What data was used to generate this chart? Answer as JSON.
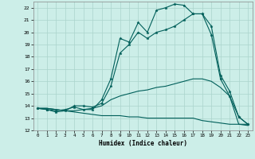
{
  "xlabel": "Humidex (Indice chaleur)",
  "bg_color": "#cceee8",
  "grid_color": "#aad4cc",
  "line_color": "#005f5a",
  "xlim": [
    -0.5,
    23.5
  ],
  "ylim": [
    12,
    22.5
  ],
  "xticks": [
    0,
    1,
    2,
    3,
    4,
    5,
    6,
    7,
    8,
    9,
    10,
    11,
    12,
    13,
    14,
    15,
    16,
    17,
    18,
    19,
    20,
    21,
    22,
    23
  ],
  "yticks": [
    12,
    13,
    14,
    15,
    16,
    17,
    18,
    19,
    20,
    21,
    22
  ],
  "line1_y": [
    13.8,
    13.7,
    13.6,
    13.7,
    13.9,
    13.7,
    13.7,
    14.5,
    16.2,
    19.5,
    19.2,
    20.8,
    20.0,
    21.8,
    22.0,
    22.3,
    22.2,
    21.5,
    21.5,
    19.8,
    16.2,
    14.8,
    13.1,
    12.5
  ],
  "line2_y": [
    13.8,
    13.7,
    13.5,
    13.6,
    14.0,
    14.0,
    13.9,
    14.2,
    15.6,
    18.3,
    19.0,
    20.0,
    19.5,
    20.0,
    20.2,
    20.5,
    21.0,
    21.5,
    21.5,
    20.5,
    16.5,
    15.2,
    13.1,
    12.5
  ],
  "line3_y": [
    13.8,
    13.8,
    13.7,
    13.6,
    13.6,
    13.7,
    13.8,
    14.0,
    14.5,
    14.8,
    15.0,
    15.2,
    15.3,
    15.5,
    15.6,
    15.8,
    16.0,
    16.2,
    16.2,
    16.0,
    15.5,
    14.8,
    12.5,
    12.5
  ],
  "line4_y": [
    13.8,
    13.8,
    13.7,
    13.6,
    13.5,
    13.4,
    13.3,
    13.2,
    13.2,
    13.2,
    13.1,
    13.1,
    13.0,
    13.0,
    13.0,
    13.0,
    13.0,
    13.0,
    12.8,
    12.7,
    12.6,
    12.5,
    12.5,
    12.4
  ]
}
